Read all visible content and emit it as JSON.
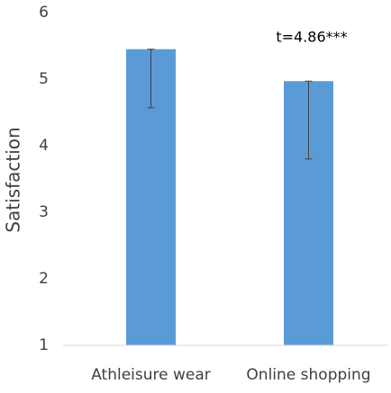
{
  "chart_data": {
    "type": "bar",
    "y_label": "Satisfaction",
    "annotation": "t=4.86***",
    "categories": [
      "Athleisure wear",
      "Online shopping"
    ],
    "values": [
      5.45,
      4.97
    ],
    "errors": [
      0.88,
      1.17
    ],
    "color": "#5b9bd5",
    "ylim": [
      1,
      6
    ],
    "yticks": [
      1,
      2,
      3,
      4,
      5,
      6
    ],
    "grid": false
  }
}
